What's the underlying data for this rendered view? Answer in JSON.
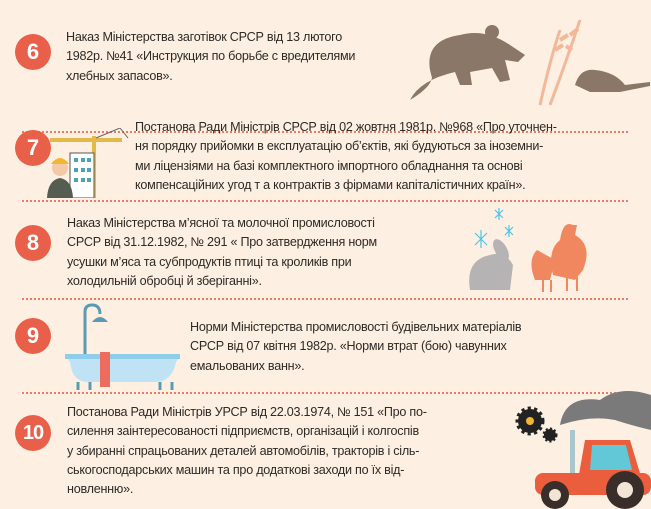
{
  "items": [
    {
      "number": "6",
      "lines": [
        "Наказ Міністерства заготівок СРСР від 13 лютого",
        "1982р. №41 «Инструкция по борьбе с вредителями",
        "хлебных запасов»."
      ],
      "illustration": "rat-and-wheat-icon"
    },
    {
      "number": "7",
      "lines": [
        "Постанова Ради Міністрів СРСР від 02 жовтня 1981р. №968 «Про уточнен-",
        "ня порядку прийомки в експлуатацію об’єктів, які будуються за іноземни-",
        "ми ліцензіями  на базі комплектного імпортного обладнання та основі",
        "компенсаційних  угод т а контрактів  з фірмами капіталістичних країн»."
      ],
      "illustration": "construction-worker-crane-icon"
    },
    {
      "number": "8",
      "lines": [
        "Наказ Міністерства м’ясної та молочної промисловості",
        "СРСР  від 31.12.1982, № 291 « Про затвердження норм",
        "усушки м’яса та субпродуктів птиці та кроликів  при",
        "холодильній обробці й зберіганні»."
      ],
      "illustration": "rabbit-chickens-snowflakes-icon"
    },
    {
      "number": "9",
      "lines": [
        "Норми Міністерства промисловості будівельних матеріалів",
        "СРСР від 07 квітня 1982р. «Норми втрат (бою) чавунних",
        "емальованих ванн»."
      ],
      "illustration": "bathtub-shower-icon"
    },
    {
      "number": "10",
      "lines": [
        "Постанова Ради Міністрів УРСР від 22.03.1974, № 151 «Про по-",
        "силення  заінтересованості підприємств, організацій і колгоспів",
        "у збиранні спрацьованих деталей  автомобілів, тракторів і сіль-",
        "ськогосподарських машин та про додаткові заходи  по їх від-",
        "новленню»."
      ],
      "illustration": "tractor-gears-icon"
    }
  ],
  "colors": {
    "background": "#fdf0e2",
    "accent": "#e9604a",
    "text": "#2e2a26"
  }
}
